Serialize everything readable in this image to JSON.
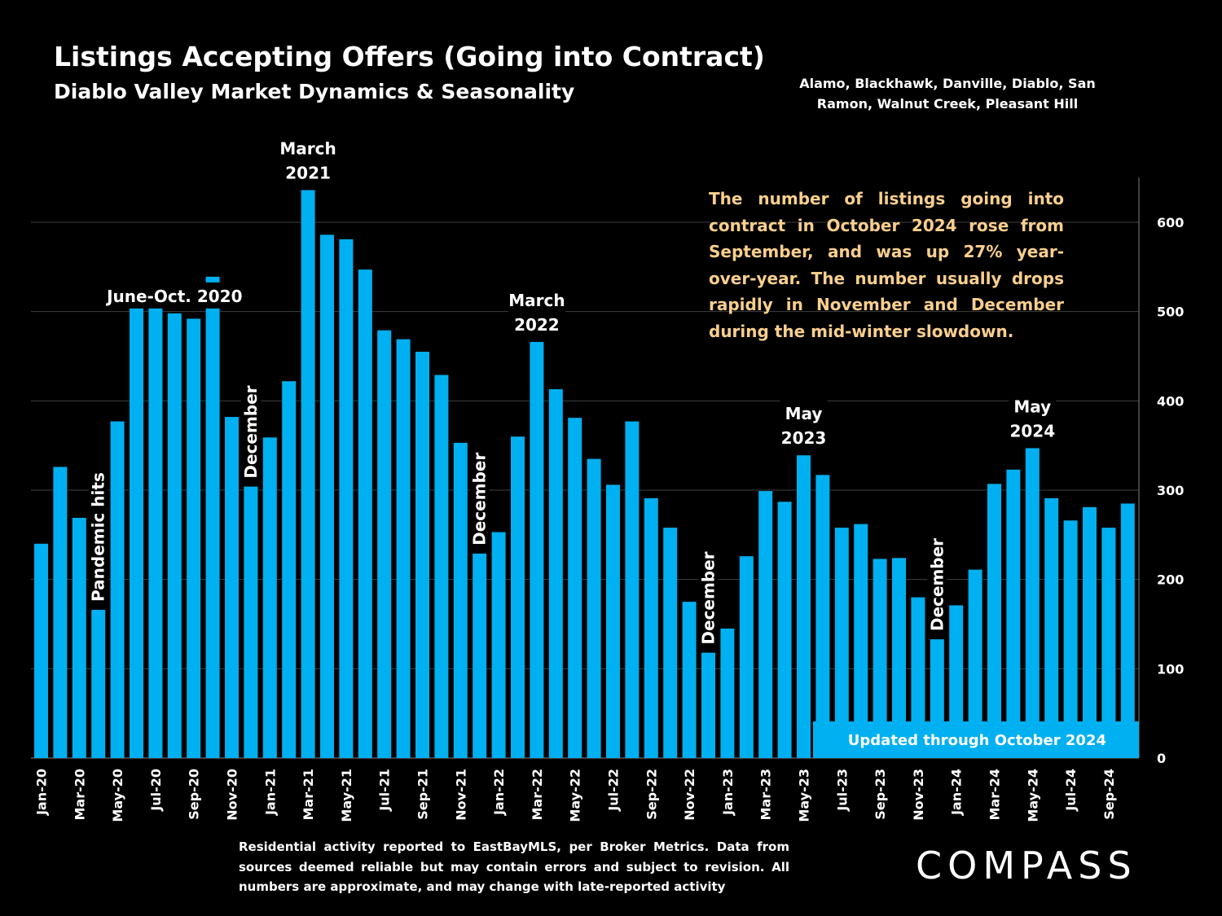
{
  "header": {
    "title": "Listings Accepting Offers (Going into Contract)",
    "subtitle": "Diablo Valley Market Dynamics & Seasonality",
    "region": "Alamo, Blackhawk, Danville, Diablo, San Ramon, Walnut Creek, Pleasant Hill"
  },
  "note": "The number of listings going into contract in October 2024 rose from September, and was up 27% year-over-year.  The number usually drops rapidly in November and December during the mid-winter slowdown.",
  "updated_label": "Updated through October 2024",
  "footnote": "Residential activity reported to EastBayMLS, per Broker Metrics. Data from sources deemed reliable but may contain errors and subject to revision. All numbers are approximate, and may change with late-reported activity",
  "logo": "COMPASS",
  "colors": {
    "bar": "#00b0f0",
    "note": "#f9cf8d",
    "background": "#000000",
    "gridline": "#404040"
  },
  "chart_data": {
    "type": "bar",
    "y_axis_position": "right",
    "ylim": [
      0,
      650
    ],
    "y_ticks": [
      0,
      100,
      200,
      300,
      400,
      500,
      600
    ],
    "grid": true,
    "categories": [
      "Jan-20",
      "Feb-20",
      "Mar-20",
      "Apr-20",
      "May-20",
      "Jun-20",
      "Jul-20",
      "Aug-20",
      "Sep-20",
      "Oct-20",
      "Nov-20",
      "Dec-20",
      "Jan-21",
      "Feb-21",
      "Mar-21",
      "Apr-21",
      "May-21",
      "Jun-21",
      "Jul-21",
      "Aug-21",
      "Sep-21",
      "Oct-21",
      "Nov-21",
      "Dec-21",
      "Jan-22",
      "Feb-22",
      "Mar-22",
      "Apr-22",
      "May-22",
      "Jun-22",
      "Jul-22",
      "Aug-22",
      "Sep-22",
      "Oct-22",
      "Nov-22",
      "Dec-22",
      "Jan-23",
      "Feb-23",
      "Mar-23",
      "Apr-23",
      "May-23",
      "Jun-23",
      "Jul-23",
      "Aug-23",
      "Sep-23",
      "Oct-23",
      "Nov-23",
      "Dec-23",
      "Jan-24",
      "Feb-24",
      "Mar-24",
      "Apr-24",
      "May-24",
      "Jun-24",
      "Jul-24",
      "Aug-24",
      "Sep-24",
      "Oct-24"
    ],
    "values": [
      240,
      326,
      269,
      166,
      377,
      530,
      523,
      498,
      492,
      539,
      382,
      304,
      359,
      422,
      636,
      586,
      581,
      547,
      479,
      469,
      455,
      429,
      353,
      229,
      253,
      360,
      466,
      413,
      381,
      335,
      306,
      377,
      291,
      258,
      175,
      118,
      145,
      226,
      299,
      287,
      339,
      317,
      258,
      262,
      223,
      224,
      180,
      133,
      171,
      211,
      307,
      323,
      347,
      291,
      266,
      281,
      258,
      285
    ],
    "tick_labels": [
      "Jan-20",
      "Mar-20",
      "May-20",
      "Jul-20",
      "Sep-20",
      "Nov-20",
      "Jan-21",
      "Mar-21",
      "May-21",
      "Jul-21",
      "Sep-21",
      "Nov-21",
      "Jan-22",
      "Mar-22",
      "May-22",
      "Jul-22",
      "Sep-22",
      "Nov-22",
      "Jan-23",
      "Mar-23",
      "May-23",
      "Jul-23",
      "Sep-23",
      "Nov-23",
      "Jan-24",
      "Mar-24",
      "May-24",
      "Jul-24",
      "Sep-24"
    ],
    "annotations": [
      {
        "lines": [
          "Pandemic hits"
        ],
        "index": 3,
        "vertical": true
      },
      {
        "lines": [
          "June-Oct. 2020"
        ],
        "index": 7,
        "vertical": false
      },
      {
        "lines": [
          "December"
        ],
        "index": 11,
        "vertical": true
      },
      {
        "lines": [
          "March",
          "2021"
        ],
        "index": 14,
        "vertical": false
      },
      {
        "lines": [
          "December"
        ],
        "index": 23,
        "vertical": true
      },
      {
        "lines": [
          "March",
          "2022"
        ],
        "index": 26,
        "vertical": false
      },
      {
        "lines": [
          "December"
        ],
        "index": 35,
        "vertical": true
      },
      {
        "lines": [
          "May",
          "2023"
        ],
        "index": 40,
        "vertical": false
      },
      {
        "lines": [
          "December"
        ],
        "index": 47,
        "vertical": true
      },
      {
        "lines": [
          "May",
          "2024"
        ],
        "index": 52,
        "vertical": false
      }
    ]
  }
}
